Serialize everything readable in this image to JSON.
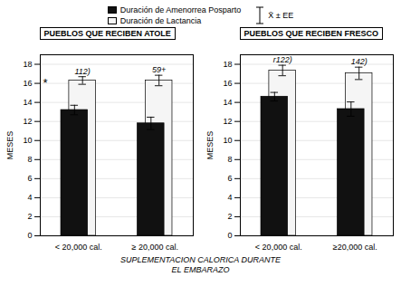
{
  "chart_data": [
    {
      "type": "bar",
      "title": "PUEBLOS QUE RECIBEN ATOLE",
      "xlabel": [
        "SUPLEMENTACION CALORICA DURANTE",
        "EL EMBARAZO"
      ],
      "ylabel": "MESES",
      "categories": [
        "< 20,000 cal.",
        "≥ 20,000 cal."
      ],
      "series": [
        {
          "name": "Duración de Amenorrea Posparto",
          "color": "#111111",
          "values": [
            13.2,
            11.8
          ],
          "errors": [
            0.5,
            0.65
          ]
        },
        {
          "name": "Duración de Lactancia",
          "color": "#f5f5f5",
          "values": [
            16.3,
            16.3
          ],
          "errors": [
            0.4,
            0.55
          ],
          "annotations": [
            "112)",
            "59+"
          ]
        }
      ],
      "ylim": [
        0,
        19
      ],
      "yticks": [
        0,
        2,
        4,
        6,
        8,
        10,
        12,
        14,
        16,
        18
      ],
      "grid": true,
      "annotations": [
        {
          "text": "*",
          "y": 16
        },
        {
          "text": "X̄ ± EE"
        }
      ]
    },
    {
      "type": "bar",
      "title": "PUEBLOS QUE RECIBEN FRESCO",
      "ylabel": "MESES",
      "categories": [
        "< 20,000 cal.",
        "≥20,000 cal."
      ],
      "series": [
        {
          "name": "Duración de Amenorrea Posparto",
          "color": "#111111",
          "values": [
            14.6,
            13.3
          ],
          "errors": [
            0.45,
            0.75
          ]
        },
        {
          "name": "Duración de Lactancia",
          "color": "#f5f5f5",
          "values": [
            17.35,
            17.05
          ],
          "errors": [
            0.55,
            0.65
          ],
          "annotations": [
            "r122)",
            "142)"
          ]
        }
      ],
      "ylim": [
        0,
        19
      ],
      "yticks": [
        0,
        2,
        4,
        6,
        8,
        10,
        12,
        14,
        16,
        18
      ],
      "grid": true
    }
  ]
}
